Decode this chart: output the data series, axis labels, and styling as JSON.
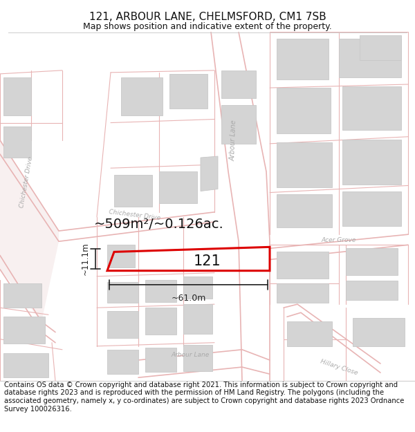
{
  "title_line1": "121, ARBOUR LANE, CHELMSFORD, CM1 7SB",
  "title_line2": "Map shows position and indicative extent of the property.",
  "footer_text": "Contains OS data © Crown copyright and database right 2021. This information is subject to Crown copyright and database rights 2023 and is reproduced with the permission of HM Land Registry. The polygons (including the associated geometry, namely x, y co-ordinates) are subject to Crown copyright and database rights 2023 Ordnance Survey 100026316.",
  "area_label": "~509m²/~0.126ac.",
  "width_label": "~61.0m",
  "height_label": "~11.1m",
  "plot_number": "121",
  "bg_color": "#ffffff",
  "road_line_color": "#e8b4b4",
  "road_fill_color": "#f5e8e8",
  "building_fill": "#d4d4d4",
  "building_edge": "#c8c8c8",
  "plot_edge_color": "#dd0000",
  "plot_fill": "none",
  "dim_color": "#222222",
  "title_fontsize": 11,
  "subtitle_fontsize": 9,
  "footer_fontsize": 7.2,
  "label_color": "#aaaaaa"
}
